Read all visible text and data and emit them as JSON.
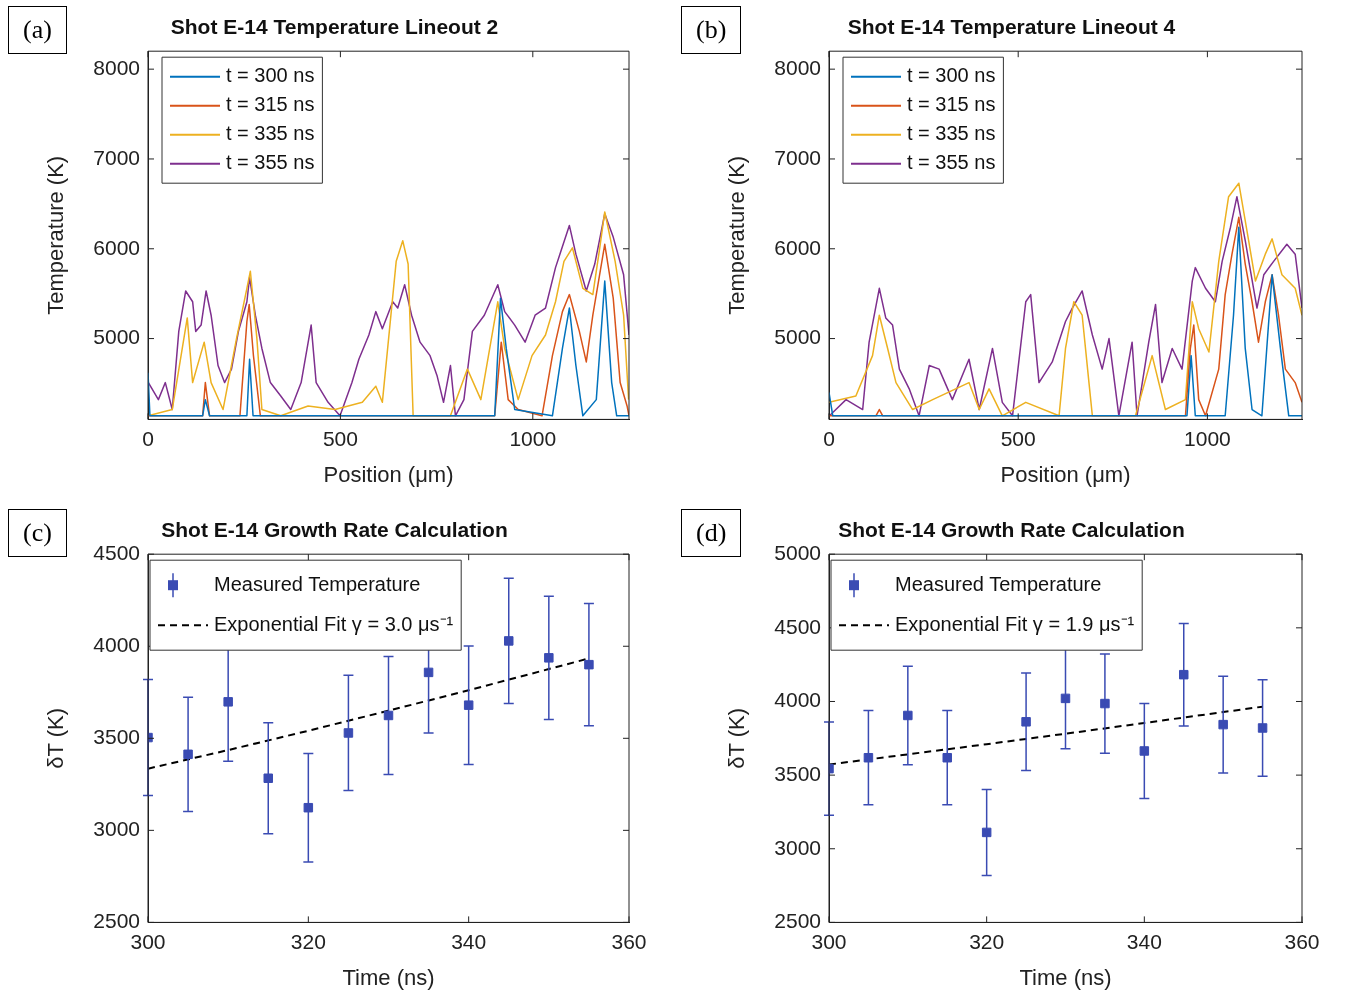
{
  "chart_data": [
    {
      "type": "line",
      "title": "Shot E-14 Temperature Lineout 2",
      "xlabel": "Position (μm)",
      "ylabel": "Temperature (K)",
      "annotations": [
        "(a)"
      ],
      "xlim": [
        0,
        1250
      ],
      "xticks": [
        0,
        500,
        1000
      ],
      "ylim": [
        4100,
        8200
      ],
      "yticks": [
        5000,
        6000,
        7000,
        8000
      ],
      "legend": "top left",
      "marker": "none",
      "series": [
        {
          "name": "t = 300 ns",
          "color": "#0072bd",
          "x": [
            0,
            5,
            142,
            149,
            160,
            257,
            264,
            273,
            901,
            916,
            931,
            953,
            1051,
            1077,
            1095,
            1112,
            1130,
            1165,
            1187,
            1205,
            1218,
            1250
          ],
          "values": [
            4620,
            4140,
            4140,
            4320,
            4140,
            4140,
            4770,
            4140,
            4140,
            5450,
            4890,
            4210,
            4140,
            4890,
            5340,
            4700,
            4140,
            4320,
            5640,
            4510,
            4140,
            4140
          ]
        },
        {
          "name": "t = 315 ns",
          "color": "#d95319",
          "x": [
            0,
            142,
            149,
            160,
            239,
            257,
            263,
            274,
            292,
            901,
            918,
            936,
            962,
            1024,
            1051,
            1077,
            1095,
            1121,
            1139,
            1156,
            1187,
            1209,
            1227,
            1245,
            1250
          ],
          "values": [
            4140,
            4140,
            4510,
            4140,
            4140,
            5190,
            5380,
            4810,
            4140,
            4140,
            4960,
            4320,
            4210,
            4140,
            4810,
            5300,
            5490,
            5080,
            4740,
            5260,
            6050,
            5450,
            4510,
            4250,
            4140
          ]
        },
        {
          "name": "t = 335 ns",
          "color": "#edb120",
          "x": [
            0,
            63,
            102,
            116,
            146,
            164,
            195,
            230,
            257,
            266,
            283,
            296,
            345,
            416,
            486,
            557,
            592,
            609,
            645,
            662,
            676,
            689,
            786,
            830,
            865,
            909,
            927,
            962,
            998,
            1033,
            1059,
            1081,
            1103,
            1130,
            1156,
            1174,
            1187,
            1214,
            1236,
            1249
          ],
          "values": [
            4140,
            4210,
            5230,
            4510,
            4960,
            4510,
            4210,
            5000,
            5560,
            5750,
            5000,
            4210,
            4140,
            4250,
            4210,
            4290,
            4470,
            4290,
            5860,
            6090,
            5830,
            4140,
            4140,
            4660,
            4320,
            5410,
            4890,
            4320,
            4810,
            5040,
            5410,
            5860,
            6010,
            5560,
            5490,
            6010,
            6410,
            5860,
            5260,
            4320
          ]
        },
        {
          "name": "t = 355 ns",
          "color": "#7e2f8e",
          "x": [
            1,
            27,
            45,
            63,
            80,
            98,
            116,
            124,
            138,
            151,
            164,
            182,
            199,
            217,
            235,
            257,
            264,
            279,
            296,
            318,
            345,
            371,
            398,
            424,
            437,
            468,
            499,
            530,
            548,
            574,
            592,
            609,
            636,
            649,
            667,
            685,
            707,
            733,
            751,
            768,
            786,
            799,
            821,
            843,
            874,
            909,
            927,
            953,
            980,
            1006,
            1033,
            1059,
            1095,
            1112,
            1139,
            1161,
            1187,
            1209,
            1236,
            1250
          ],
          "values": [
            4510,
            4320,
            4510,
            4210,
            5080,
            5530,
            5410,
            5080,
            5150,
            5530,
            5260,
            4700,
            4510,
            4660,
            5080,
            5410,
            5680,
            5260,
            4890,
            4510,
            4360,
            4210,
            4510,
            5150,
            4510,
            4290,
            4140,
            4510,
            4770,
            5040,
            5300,
            5110,
            5410,
            5340,
            5600,
            5260,
            4960,
            4810,
            4590,
            4290,
            4700,
            4140,
            4320,
            5080,
            5260,
            5600,
            5300,
            5150,
            4960,
            5260,
            5340,
            5790,
            6260,
            5940,
            5530,
            5830,
            6390,
            6130,
            5710,
            5040
          ]
        }
      ]
    },
    {
      "type": "line",
      "title": "Shot E-14 Temperature Lineout 4",
      "xlabel": "Position (μm)",
      "ylabel": "Temperature (K)",
      "annotations": [
        "(b)"
      ],
      "xlim": [
        0,
        1250
      ],
      "xticks": [
        0,
        500,
        1000
      ],
      "ylim": [
        4100,
        8200
      ],
      "yticks": [
        5000,
        6000,
        7000,
        8000
      ],
      "legend": "top left",
      "marker": "none",
      "series": [
        {
          "name": "t = 300 ns",
          "color": "#0072bd",
          "x": [
            0,
            10,
            946,
            957,
            968,
            1047,
            1069,
            1083,
            1100,
            1118,
            1144,
            1171,
            1193,
            1215,
            1250
          ],
          "values": [
            4400,
            4140,
            4140,
            4810,
            4140,
            4140,
            5260,
            6240,
            4890,
            4210,
            4140,
            5710,
            4890,
            4140,
            4140
          ]
        },
        {
          "name": "t = 315 ns",
          "color": "#d95319",
          "x": [
            0,
            124,
            133,
            142,
            942,
            955,
            964,
            977,
            995,
            1030,
            1047,
            1065,
            1083,
            1100,
            1118,
            1135,
            1153,
            1171,
            1188,
            1206,
            1232,
            1250
          ],
          "values": [
            4140,
            4140,
            4210,
            4140,
            4140,
            4890,
            5150,
            4320,
            4140,
            4660,
            5490,
            5940,
            6350,
            5830,
            5410,
            4960,
            5410,
            5710,
            5260,
            4660,
            4510,
            4290
          ]
        },
        {
          "name": "t = 335 ns",
          "color": "#edb120",
          "x": [
            0,
            71,
            115,
            133,
            155,
            177,
            221,
            274,
            370,
            397,
            423,
            458,
            520,
            608,
            625,
            647,
            669,
            687,
            696,
            810,
            854,
            889,
            942,
            960,
            977,
            1004,
            1030,
            1056,
            1083,
            1109,
            1127,
            1153,
            1171,
            1197,
            1232,
            1250
          ],
          "values": [
            4290,
            4360,
            4810,
            5260,
            4890,
            4510,
            4210,
            4320,
            4510,
            4210,
            4440,
            4140,
            4290,
            4140,
            4890,
            5410,
            5260,
            4510,
            4140,
            4140,
            4810,
            4210,
            4320,
            5410,
            5110,
            4850,
            5860,
            6580,
            6730,
            6090,
            5640,
            5940,
            6110,
            5710,
            5560,
            5260
          ]
        },
        {
          "name": "t = 355 ns",
          "color": "#7e2f8e",
          "x": [
            1,
            45,
            89,
            106,
            133,
            150,
            168,
            186,
            212,
            238,
            265,
            291,
            326,
            370,
            397,
            432,
            458,
            485,
            520,
            533,
            555,
            590,
            625,
            643,
            669,
            696,
            722,
            740,
            766,
            801,
            814,
            845,
            863,
            880,
            907,
            933,
            960,
            968,
            995,
            1021,
            1039,
            1061,
            1078,
            1100,
            1131,
            1149,
            1175,
            1210,
            1232,
            1250
          ],
          "values": [
            4140,
            4320,
            4210,
            4960,
            5560,
            5230,
            5150,
            4660,
            4440,
            4140,
            4700,
            4660,
            4320,
            4770,
            4210,
            4890,
            4290,
            4140,
            5410,
            5490,
            4510,
            4740,
            5190,
            5340,
            5530,
            5040,
            4660,
            5000,
            4140,
            4960,
            4140,
            4960,
            5380,
            4510,
            4890,
            4660,
            5640,
            5790,
            5560,
            5410,
            5860,
            6240,
            6580,
            6090,
            5340,
            5710,
            5860,
            6050,
            5940,
            5340
          ]
        }
      ]
    },
    {
      "type": "scatter",
      "title": "Shot E-14 Growth Rate Calculation",
      "xlabel": "Time (ns)",
      "ylabel": "δT (K)",
      "annotations": [
        "(c)"
      ],
      "xlim": [
        300,
        360
      ],
      "xticks": [
        300,
        320,
        340,
        360
      ],
      "ylim": [
        2500,
        4500
      ],
      "yticks": [
        2500,
        3000,
        3500,
        4000,
        4500
      ],
      "legend": "top left",
      "series": [
        {
          "name": "Measured Temperature",
          "type": "scatter",
          "marker": "square",
          "color": "#3a4bb3",
          "x": [
            300,
            305,
            310,
            315,
            320,
            325,
            330,
            335,
            340,
            345,
            350,
            355
          ],
          "values": [
            3504,
            3413,
            3698,
            3283,
            3123,
            3529,
            3624,
            3858,
            3680,
            4029,
            3937,
            3900
          ],
          "errors": [
            315,
            310,
            323,
            302,
            295,
            313,
            320,
            329,
            322,
            340,
            335,
            332
          ]
        },
        {
          "name": "Exponential Fit γ = 3.0 μs⁻¹",
          "type": "line",
          "marker": "none",
          "line_style": "dashed",
          "color": "#000000",
          "x": [
            300,
            310,
            320,
            330,
            340,
            350,
            355
          ],
          "values": [
            3335,
            3436,
            3541,
            3650,
            3761,
            3876,
            3934
          ]
        }
      ]
    },
    {
      "type": "scatter",
      "title": "Shot E-14 Growth Rate Calculation",
      "xlabel": "Time (ns)",
      "ylabel": "δT (K)",
      "annotations": [
        "(d)"
      ],
      "xlim": [
        300,
        360
      ],
      "xticks": [
        300,
        320,
        340,
        360
      ],
      "ylim": [
        2500,
        5000
      ],
      "yticks": [
        2500,
        3000,
        3500,
        4000,
        4500,
        5000
      ],
      "legend": "top left",
      "series": [
        {
          "name": "Measured Temperature",
          "type": "scatter",
          "marker": "square",
          "color": "#3a4bb3",
          "x": [
            300,
            305,
            310,
            315,
            320,
            325,
            330,
            335,
            340,
            345,
            350,
            355
          ],
          "values": [
            3544,
            3618,
            3905,
            3618,
            3111,
            3862,
            4021,
            3986,
            3664,
            4182,
            3843,
            3820
          ],
          "errors": [
            316,
            320,
            335,
            320,
            292,
            331,
            342,
            337,
            322,
            348,
            329,
            327
          ]
        },
        {
          "name": "Exponential Fit γ = 1.9 μs⁻¹",
          "type": "line",
          "marker": "none",
          "line_style": "dashed",
          "color": "#000000",
          "x": [
            300,
            310,
            320,
            330,
            340,
            350,
            355
          ],
          "values": [
            3572,
            3641,
            3710,
            3781,
            3854,
            3928,
            3965
          ]
        }
      ]
    }
  ]
}
